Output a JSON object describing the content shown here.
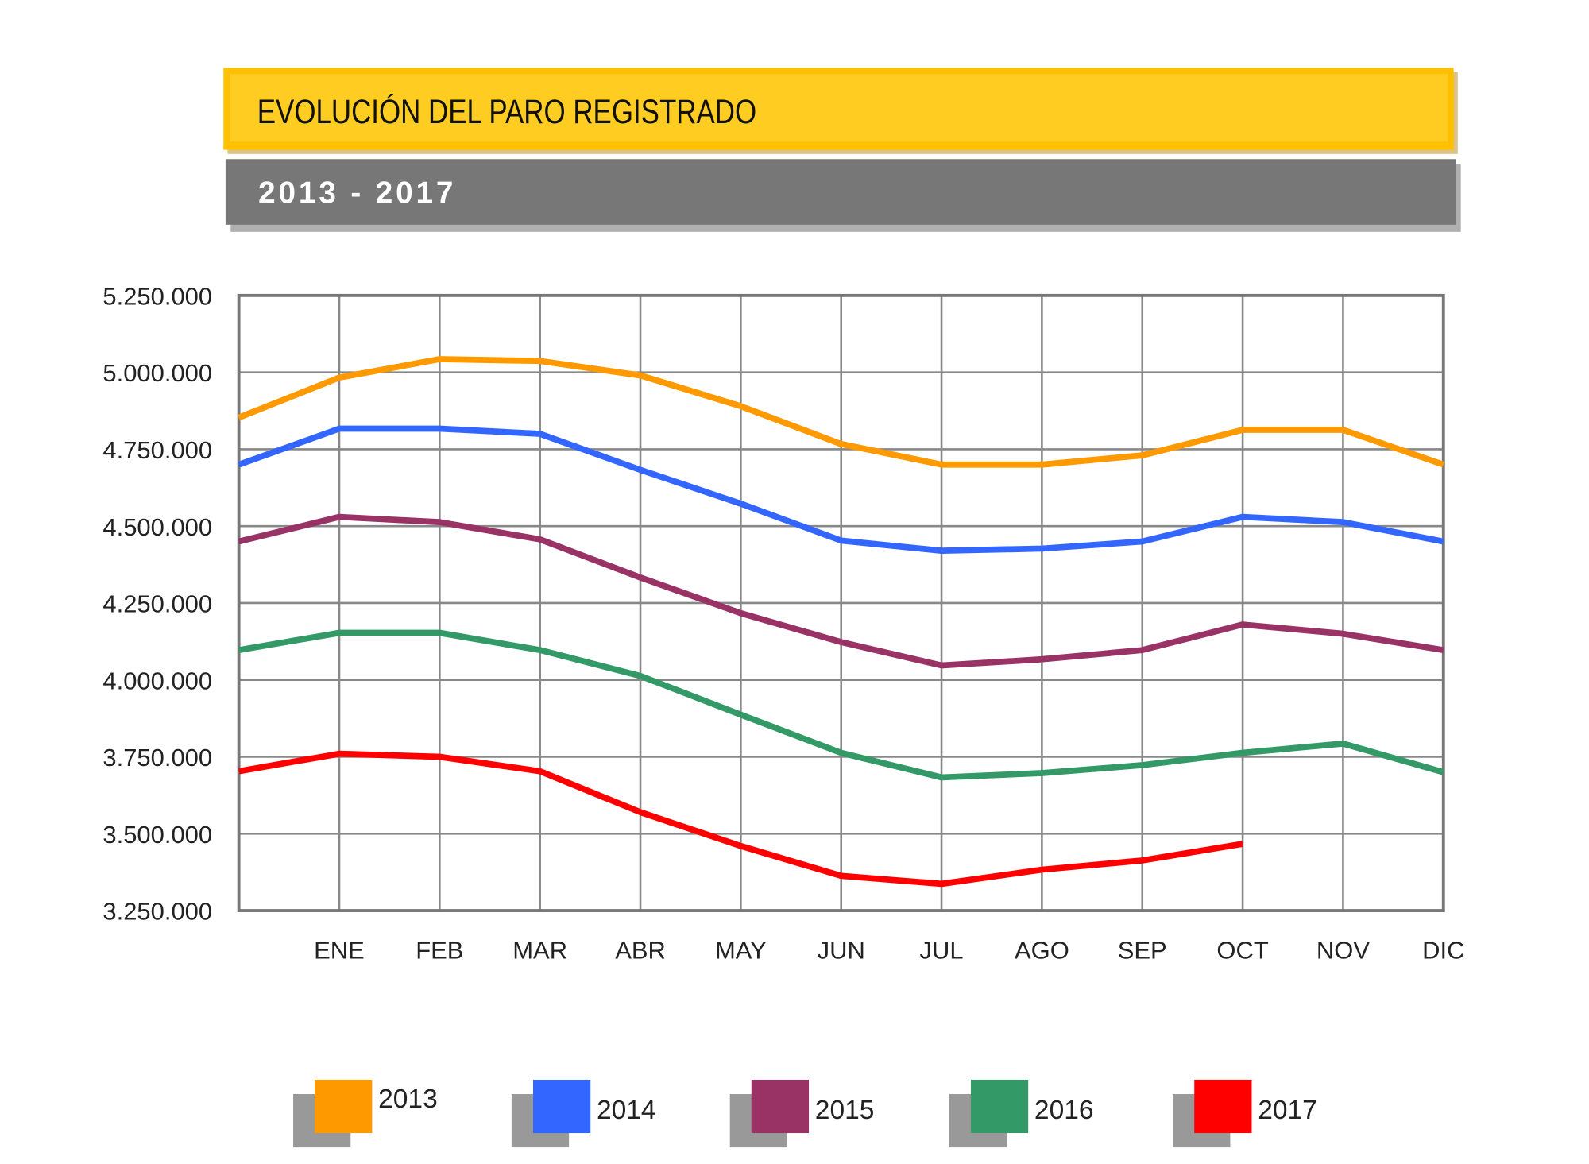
{
  "header": {
    "title": "EVOLUCIÓN DEL PARO REGISTRADO",
    "subtitle": "2013 - 2017"
  },
  "chart_data": {
    "type": "line",
    "title": "EVOLUCIÓN DEL PARO REGISTRADO",
    "subtitle": "2013 - 2017",
    "categories": [
      "",
      "ENE",
      "FEB",
      "MAR",
      "ABR",
      "MAY",
      "JUN",
      "JUL",
      "AGO",
      "SEP",
      "OCT",
      "NOV",
      "DIC"
    ],
    "ylim": [
      3250000,
      5250000
    ],
    "yticks": [
      3250000,
      3500000,
      3750000,
      4000000,
      4250000,
      4500000,
      4750000,
      5000000,
      5250000
    ],
    "ytick_labels": [
      "3.250.000",
      "3.500.000",
      "3.750.000",
      "4.000.000",
      "4.250.000",
      "4.500.000",
      "4.750.000",
      "5.000.000",
      "5.250.000"
    ],
    "grid": true,
    "legend_position": "bottom",
    "series": [
      {
        "name": "2013",
        "color": "#ff9900",
        "values": [
          4853000,
          4983000,
          5043000,
          5037000,
          4990000,
          4890000,
          4767000,
          4700000,
          4700000,
          4730000,
          4813000,
          4813000,
          4700000
        ]
      },
      {
        "name": "2014",
        "color": "#3366ff",
        "values": [
          4700000,
          4817000,
          4817000,
          4800000,
          4683000,
          4573000,
          4453000,
          4420000,
          4427000,
          4450000,
          4530000,
          4513000,
          4450000
        ]
      },
      {
        "name": "2015",
        "color": "#993366",
        "values": [
          4450000,
          4530000,
          4513000,
          4457000,
          4333000,
          4217000,
          4123000,
          4047000,
          4067000,
          4097000,
          4180000,
          4150000,
          4097000
        ]
      },
      {
        "name": "2016",
        "color": "#339966",
        "values": [
          4097000,
          4153000,
          4153000,
          4097000,
          4013000,
          3887000,
          3763000,
          3683000,
          3697000,
          3723000,
          3763000,
          3793000,
          3700000
        ]
      },
      {
        "name": "2017",
        "color": "#ff0000",
        "values": [
          3703000,
          3760000,
          3750000,
          3703000,
          3570000,
          3460000,
          3363000,
          3337000,
          3383000,
          3413000,
          3467000,
          null,
          null
        ]
      }
    ]
  }
}
